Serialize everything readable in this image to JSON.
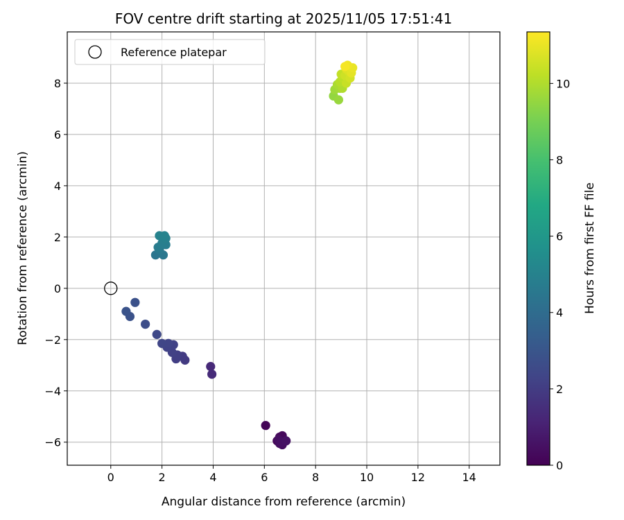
{
  "chart_data": {
    "type": "scatter",
    "title": "FOV centre drift starting at 2025/11/05 17:51:41",
    "xlabel": "Angular distance from reference (arcmin)",
    "ylabel": "Rotation from reference (arcmin)",
    "xlim": [
      -1.7,
      15.2
    ],
    "ylim": [
      -6.9,
      10.0
    ],
    "x_ticks": [
      0,
      2,
      4,
      6,
      8,
      10,
      12,
      14
    ],
    "y_ticks": [
      -6,
      -4,
      -2,
      0,
      2,
      4,
      6,
      8
    ],
    "x_tick_labels": [
      "0",
      "2",
      "4",
      "6",
      "8",
      "10",
      "12",
      "14"
    ],
    "y_tick_labels": [
      "−6",
      "−4",
      "−2",
      "0",
      "2",
      "4",
      "6",
      "8"
    ],
    "grid": true,
    "legend": {
      "position": "top-left",
      "entries": [
        "Reference platepar"
      ]
    },
    "reference_point": {
      "x": 0,
      "y": 0,
      "label": "Reference platepar"
    },
    "colorbar": {
      "label": "Hours from first FF file",
      "colormap": "viridis",
      "range": [
        0,
        11.35
      ],
      "ticks": [
        0,
        2,
        4,
        6,
        8,
        10
      ],
      "tick_labels": [
        "0",
        "2",
        "4",
        "6",
        "8",
        "10"
      ]
    },
    "points": [
      {
        "x": 6.05,
        "y": -5.35,
        "hours": 0.1
      },
      {
        "x": 6.5,
        "y": -5.95,
        "hours": 0.15
      },
      {
        "x": 6.6,
        "y": -5.8,
        "hours": 0.2
      },
      {
        "x": 6.7,
        "y": -5.75,
        "hours": 0.25
      },
      {
        "x": 6.8,
        "y": -5.95,
        "hours": 0.3
      },
      {
        "x": 6.6,
        "y": -6.05,
        "hours": 0.35
      },
      {
        "x": 6.7,
        "y": -6.1,
        "hours": 0.4
      },
      {
        "x": 6.55,
        "y": -5.9,
        "hours": 0.45
      },
      {
        "x": 6.65,
        "y": -6.0,
        "hours": 0.5
      },
      {
        "x": 6.85,
        "y": -5.95,
        "hours": 0.55
      },
      {
        "x": 3.9,
        "y": -3.05,
        "hours": 1.3
      },
      {
        "x": 3.95,
        "y": -3.35,
        "hours": 1.4
      },
      {
        "x": 2.9,
        "y": -2.8,
        "hours": 1.9
      },
      {
        "x": 2.8,
        "y": -2.65,
        "hours": 2.0
      },
      {
        "x": 2.55,
        "y": -2.75,
        "hours": 2.05
      },
      {
        "x": 2.6,
        "y": -2.6,
        "hours": 2.1
      },
      {
        "x": 2.4,
        "y": -2.5,
        "hours": 2.15
      },
      {
        "x": 2.45,
        "y": -2.2,
        "hours": 2.2
      },
      {
        "x": 2.2,
        "y": -2.3,
        "hours": 2.25
      },
      {
        "x": 2.25,
        "y": -2.15,
        "hours": 2.3
      },
      {
        "x": 2.0,
        "y": -2.15,
        "hours": 2.35
      },
      {
        "x": 1.8,
        "y": -1.8,
        "hours": 2.5
      },
      {
        "x": 1.35,
        "y": -1.4,
        "hours": 2.65
      },
      {
        "x": 0.95,
        "y": -0.55,
        "hours": 2.8
      },
      {
        "x": 0.75,
        "y": -1.1,
        "hours": 2.85
      },
      {
        "x": 0.6,
        "y": -0.9,
        "hours": 2.9
      },
      {
        "x": 1.75,
        "y": 1.3,
        "hours": 4.4
      },
      {
        "x": 2.05,
        "y": 1.3,
        "hours": 4.5
      },
      {
        "x": 1.9,
        "y": 1.5,
        "hours": 4.6
      },
      {
        "x": 1.85,
        "y": 1.6,
        "hours": 4.7
      },
      {
        "x": 2.15,
        "y": 1.7,
        "hours": 4.75
      },
      {
        "x": 2.0,
        "y": 1.75,
        "hours": 4.8
      },
      {
        "x": 2.05,
        "y": 1.9,
        "hours": 4.85
      },
      {
        "x": 2.15,
        "y": 1.95,
        "hours": 4.9
      },
      {
        "x": 1.9,
        "y": 2.05,
        "hours": 5.0
      },
      {
        "x": 2.1,
        "y": 2.05,
        "hours": 5.05
      },
      {
        "x": 8.7,
        "y": 7.5,
        "hours": 9.5
      },
      {
        "x": 8.9,
        "y": 7.35,
        "hours": 9.6
      },
      {
        "x": 8.75,
        "y": 7.75,
        "hours": 9.7
      },
      {
        "x": 8.95,
        "y": 7.8,
        "hours": 9.8
      },
      {
        "x": 8.85,
        "y": 7.95,
        "hours": 9.9
      },
      {
        "x": 9.05,
        "y": 7.8,
        "hours": 10.0
      },
      {
        "x": 8.95,
        "y": 8.05,
        "hours": 10.1
      },
      {
        "x": 9.05,
        "y": 8.2,
        "hours": 10.2
      },
      {
        "x": 9.0,
        "y": 8.35,
        "hours": 10.3
      },
      {
        "x": 9.2,
        "y": 8.0,
        "hours": 10.4
      },
      {
        "x": 9.15,
        "y": 8.3,
        "hours": 10.5
      },
      {
        "x": 9.35,
        "y": 8.2,
        "hours": 10.6
      },
      {
        "x": 9.3,
        "y": 8.45,
        "hours": 10.7
      },
      {
        "x": 9.2,
        "y": 8.55,
        "hours": 10.8
      },
      {
        "x": 9.4,
        "y": 8.4,
        "hours": 10.9
      },
      {
        "x": 9.45,
        "y": 8.6,
        "hours": 11.0
      },
      {
        "x": 9.25,
        "y": 8.7,
        "hours": 11.1
      },
      {
        "x": 9.15,
        "y": 8.65,
        "hours": 11.2
      }
    ]
  }
}
